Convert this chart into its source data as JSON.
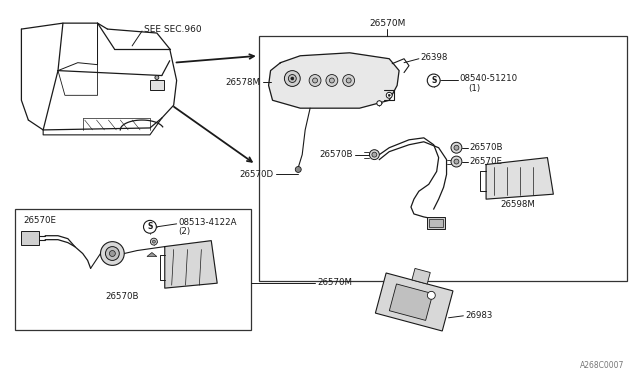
{
  "background_color": "#ffffff",
  "fig_width": 6.4,
  "fig_height": 3.72,
  "dpi": 100,
  "watermark": "A268C0007",
  "labels": {
    "see_sec": "SEE SEC.960",
    "26570M_top": "26570M",
    "26398": "26398",
    "08540_51210": "08540-51210",
    "paren_1": "(1)",
    "26578M": "26578M",
    "26570B_mid": "26570B",
    "26570E_right": "26570E",
    "26570D": "26570D",
    "26570B_lower": "26570B",
    "26598M": "26598M",
    "08513_4122A": "08513-4122A",
    "paren_2": "(2)",
    "26570E_left": "26570E",
    "26570B_box": "26570B",
    "26570M_bottom": "26570M",
    "26983": "26983"
  },
  "colors": {
    "line": "#1a1a1a",
    "box_border": "#333333",
    "part_fill": "#f0f0f0",
    "part_stroke": "#1a1a1a",
    "text": "#1a1a1a",
    "background": "#ffffff"
  }
}
